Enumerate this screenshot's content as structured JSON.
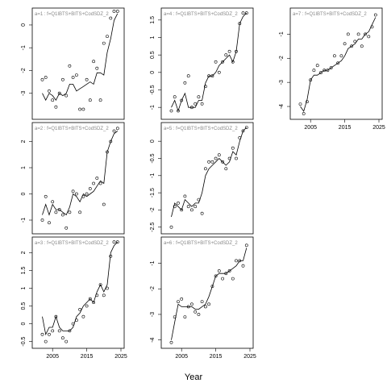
{
  "figure": {
    "xlabel": "Year"
  },
  "chart_data": [
    {
      "type": "line",
      "panel": "a=1 : f=Q1IBTS+BITS+CodSDZ_2",
      "label": "a=1 : f=Q1IBTS+BITS+CodSDZ_2",
      "xlim": [
        2000,
        2025
      ],
      "ylim": [
        -4,
        0.6
      ],
      "yticks": [
        0,
        -1,
        -2,
        -3
      ],
      "xticks": [],
      "x": [
        2002,
        2003,
        2004,
        2005,
        2006,
        2007,
        2008,
        2009,
        2010,
        2011,
        2012,
        2013,
        2014,
        2015,
        2016,
        2017,
        2018,
        2019,
        2020,
        2021,
        2022,
        2023,
        2024
      ],
      "fitted": [
        -3.0,
        -3.3,
        -3.0,
        -3.1,
        -3.3,
        -3.0,
        -3.1,
        -3.0,
        -2.6,
        -2.6,
        -2.9,
        -2.8,
        -2.7,
        -2.6,
        -2.5,
        -2.6,
        -2.1,
        -2.1,
        -2.2,
        -1.2,
        -0.6,
        0.2,
        0.5
      ],
      "observed": [
        -2.4,
        -2.3,
        -2.9,
        -3.3,
        -3.6,
        -3.0,
        -2.4,
        -3.1,
        -1.8,
        -2.3,
        -2.2,
        -3.7,
        -3.7,
        -2.4,
        -3.3,
        -1.6,
        -1.9,
        -3.3,
        -0.8,
        -0.5,
        0.3,
        0.6,
        0.6
      ]
    },
    {
      "type": "line",
      "panel": "a=2 : f=Q1IBTS+BITS+CodSDZ_2",
      "label": "a=2 : f=Q1IBTS+BITS+CodSDZ_2",
      "xlim": [
        2000,
        2025
      ],
      "ylim": [
        -1.4,
        2.6
      ],
      "yticks": [
        2,
        1,
        0,
        -1
      ],
      "xticks": [],
      "x": [
        2002,
        2003,
        2004,
        2005,
        2006,
        2007,
        2008,
        2009,
        2010,
        2011,
        2012,
        2013,
        2014,
        2015,
        2016,
        2017,
        2018,
        2019,
        2020,
        2021,
        2022,
        2023,
        2024
      ],
      "fitted": [
        -0.8,
        -0.4,
        -0.8,
        -0.4,
        -0.6,
        -0.6,
        -0.7,
        -0.8,
        -0.5,
        0.0,
        -0.1,
        -0.3,
        0.0,
        -0.1,
        0.0,
        0.1,
        0.3,
        0.5,
        0.4,
        1.6,
        2.0,
        2.3,
        2.4
      ],
      "observed": [
        -1.0,
        -0.1,
        -1.1,
        -0.3,
        -0.7,
        -0.6,
        -0.8,
        -1.3,
        -0.7,
        0.1,
        0.0,
        -0.7,
        -0.1,
        0.0,
        0.2,
        0.4,
        0.6,
        0.4,
        -0.4,
        1.6,
        2.0,
        2.4,
        2.5
      ]
    },
    {
      "type": "line",
      "panel": "a=3 : f=Q1IBTS+BITS+CodSDZ_2",
      "label": "a=3 : f=Q1IBTS+BITS+CodSDZ_2",
      "xlim": [
        2000,
        2025
      ],
      "ylim": [
        -0.6,
        2.35
      ],
      "yticks": [
        2,
        1.5,
        1,
        0.5,
        0,
        -0.5
      ],
      "xticks": [
        2005,
        2015,
        2025
      ],
      "x": [
        2002,
        2003,
        2004,
        2005,
        2006,
        2007,
        2008,
        2009,
        2010,
        2011,
        2012,
        2013,
        2014,
        2015,
        2016,
        2017,
        2018,
        2019,
        2020,
        2021,
        2022,
        2023,
        2024
      ],
      "fitted": [
        0.2,
        -0.3,
        -0.1,
        -0.1,
        0.2,
        -0.1,
        -0.2,
        -0.2,
        -0.2,
        -0.1,
        0.2,
        0.3,
        0.5,
        0.6,
        0.7,
        0.6,
        0.9,
        1.1,
        0.9,
        1.1,
        2.0,
        2.2,
        2.3
      ],
      "observed": [
        -0.3,
        -0.5,
        -0.3,
        -0.2,
        0.2,
        -0.2,
        -0.4,
        -0.5,
        -0.2,
        0.0,
        0.1,
        0.4,
        0.2,
        0.5,
        0.7,
        0.6,
        0.8,
        1.1,
        0.8,
        1.0,
        1.9,
        2.3,
        2.3
      ]
    },
    {
      "type": "line",
      "panel": "a=4 : f=Q1IBTS+BITS+CodSDZ_2",
      "label": "a=4 : f=Q1IBTS+BITS+CodSDZ_2",
      "xlim": [
        2000,
        2025
      ],
      "ylim": [
        -1.25,
        1.75
      ],
      "yticks": [
        1.5,
        1,
        0.5,
        0,
        -0.5,
        -1
      ],
      "xticks": [],
      "x": [
        2002,
        2003,
        2004,
        2005,
        2006,
        2007,
        2008,
        2009,
        2010,
        2011,
        2012,
        2013,
        2014,
        2015,
        2016,
        2017,
        2018,
        2019,
        2020,
        2021,
        2022,
        2023,
        2024
      ],
      "fitted": [
        -1.0,
        -0.8,
        -1.1,
        -0.8,
        -0.6,
        -1.0,
        -1.0,
        -1.0,
        -0.8,
        -0.8,
        -0.3,
        -0.1,
        -0.1,
        0.0,
        0.2,
        0.3,
        0.4,
        0.5,
        0.3,
        0.6,
        1.4,
        1.6,
        1.7
      ],
      "observed": [
        -1.1,
        -0.7,
        -1.1,
        -0.8,
        -0.3,
        -0.1,
        -1.0,
        -0.9,
        -0.7,
        -0.9,
        -0.4,
        -0.1,
        -0.1,
        0.3,
        0.0,
        0.3,
        0.5,
        0.6,
        0.3,
        0.6,
        1.4,
        1.7,
        1.7
      ]
    },
    {
      "type": "line",
      "panel": "a=5 : f=Q1IBTS+BITS+CodSDZ_2",
      "label": "a=5 : f=Q1IBTS+BITS+CodSDZ_2",
      "xlim": [
        2000,
        2025
      ],
      "ylim": [
        -2.6,
        0.45
      ],
      "yticks": [
        0,
        -0.5,
        -1,
        -1.5,
        -2,
        -2.5
      ],
      "xticks": [],
      "x": [
        2002,
        2003,
        2004,
        2005,
        2006,
        2007,
        2008,
        2009,
        2010,
        2011,
        2012,
        2013,
        2014,
        2015,
        2016,
        2017,
        2018,
        2019,
        2020,
        2021,
        2022,
        2023,
        2024
      ],
      "fitted": [
        -2.2,
        -1.8,
        -1.9,
        -2.0,
        -1.7,
        -1.8,
        -1.9,
        -1.8,
        -1.8,
        -1.5,
        -1.0,
        -0.8,
        -0.7,
        -0.6,
        -0.5,
        -0.6,
        -0.7,
        -0.6,
        -0.3,
        -0.4,
        0.0,
        0.3,
        0.4
      ],
      "observed": [
        -2.5,
        -1.9,
        -1.8,
        -2.0,
        -1.6,
        -1.9,
        -2.0,
        -1.9,
        -1.7,
        -2.1,
        -0.8,
        -0.6,
        -0.6,
        -0.5,
        -0.4,
        -0.6,
        -0.8,
        -0.5,
        -0.2,
        -0.5,
        0.1,
        0.3,
        0.4
      ]
    },
    {
      "type": "line",
      "panel": "a=6 : f=Q1IBTS+BITS+CodSDZ_2",
      "label": "a=6 : f=Q1IBTS+BITS+CodSDZ_2",
      "xlim": [
        2000,
        2025
      ],
      "ylim": [
        -4.2,
        -0.1
      ],
      "yticks": [
        -1,
        -2,
        -3,
        -4
      ],
      "xticks": [
        2005,
        2015,
        2025
      ],
      "x": [
        2002,
        2003,
        2004,
        2005,
        2006,
        2007,
        2008,
        2009,
        2010,
        2011,
        2012,
        2013,
        2014,
        2015,
        2016,
        2017,
        2018,
        2019,
        2020,
        2021,
        2022,
        2023,
        2024
      ],
      "fitted": [
        -4.0,
        -3.3,
        -2.6,
        -2.7,
        -2.7,
        -2.7,
        -2.7,
        -2.8,
        -2.8,
        -2.7,
        -2.6,
        -2.3,
        -1.9,
        -1.5,
        -1.4,
        -1.4,
        -1.4,
        -1.3,
        -1.2,
        -1.1,
        -0.9,
        -0.9,
        -0.4
      ],
      "observed": [
        -4.1,
        -3.1,
        -2.5,
        -2.4,
        -3.1,
        -2.7,
        -2.6,
        -2.9,
        -3.0,
        -2.5,
        -2.7,
        -2.6,
        -1.9,
        -1.5,
        -1.3,
        -1.6,
        -1.4,
        -1.3,
        -1.6,
        -0.9,
        -0.9,
        -1.1,
        -0.3
      ]
    },
    {
      "type": "line",
      "panel": "a=7 : f=Q1IBTS+BITS+CodSDZ_2",
      "label": "a=7 : f=Q1IBTS+BITS+CodSDZ_2",
      "xlim": [
        2000,
        2025
      ],
      "ylim": [
        -4.4,
        -0.05
      ],
      "yticks": [
        -1,
        -2,
        -3,
        -4
      ],
      "xticks": [
        2005,
        2015,
        2025
      ],
      "x": [
        2002,
        2003,
        2004,
        2005,
        2006,
        2007,
        2008,
        2009,
        2010,
        2011,
        2012,
        2013,
        2014,
        2015,
        2016,
        2017,
        2018,
        2019,
        2020,
        2021,
        2022,
        2023,
        2024
      ],
      "fitted": [
        -4.0,
        -4.2,
        -3.7,
        -2.9,
        -2.7,
        -2.7,
        -2.6,
        -2.5,
        -2.5,
        -2.4,
        -2.3,
        -2.2,
        -2.1,
        -1.9,
        -1.6,
        -1.5,
        -1.4,
        -1.2,
        -1.2,
        -1.0,
        -0.9,
        -0.6,
        -0.3
      ],
      "observed": [
        -3.9,
        -4.3,
        -3.8,
        -2.9,
        -2.5,
        -2.3,
        -2.6,
        -2.5,
        -2.5,
        -2.4,
        -1.9,
        -2.2,
        -1.9,
        -1.4,
        -1.0,
        -1.5,
        -1.3,
        -1.0,
        -1.5,
        -1.0,
        -1.1,
        -0.7,
        -0.2
      ]
    }
  ]
}
